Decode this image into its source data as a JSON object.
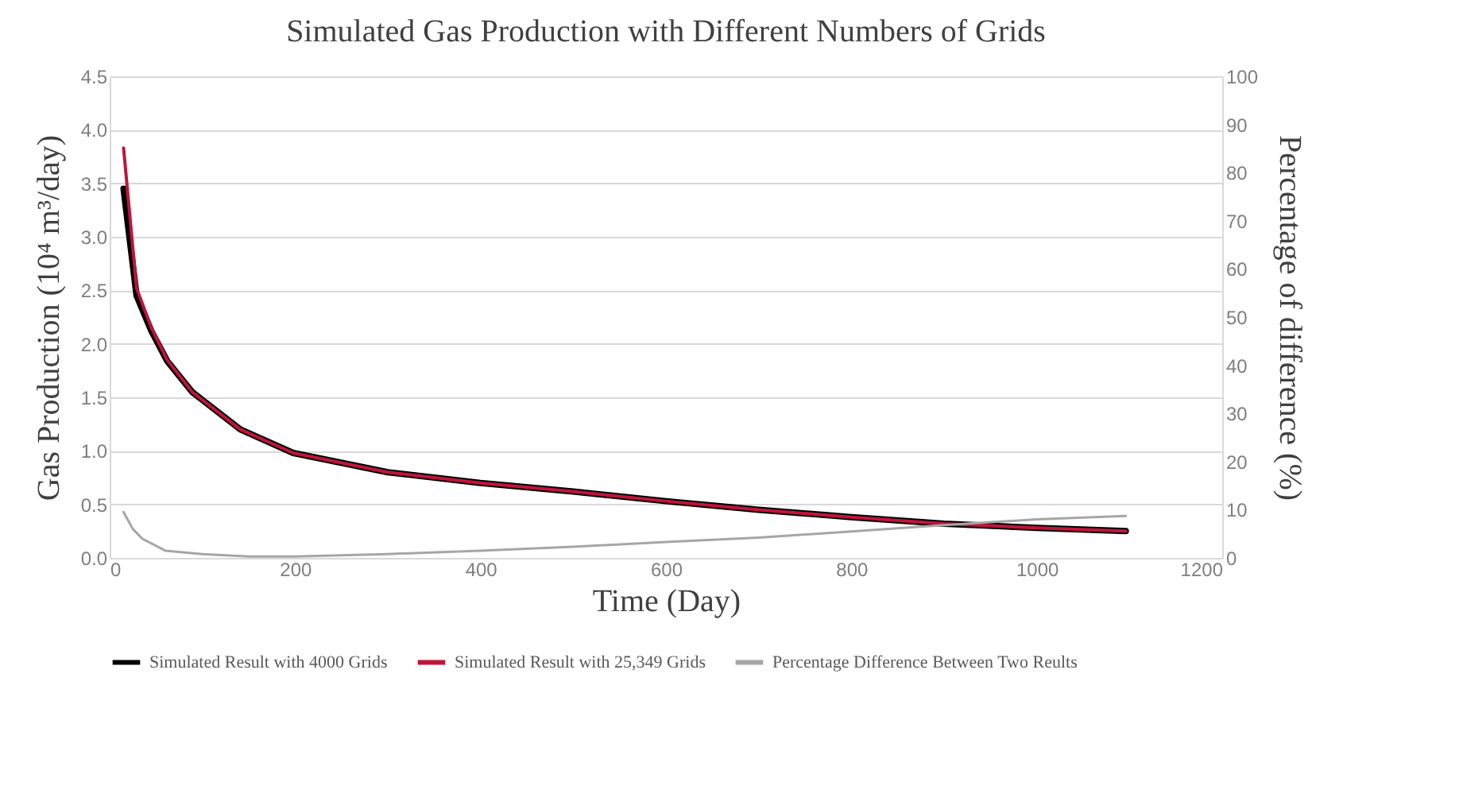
{
  "chart_data": {
    "type": "line",
    "title": "Simulated Gas Production with Different Numbers of Grids",
    "xlabel": "Time (Day)",
    "ylabel": "Gas Production (10⁴ m³/day)",
    "y2label": "Percentage of difference (%)",
    "x": [
      15,
      29,
      45,
      62,
      89,
      141,
      198,
      300,
      400,
      500,
      600,
      700,
      800,
      900,
      1000,
      1096
    ],
    "series": [
      {
        "name": "Simulated Result with 4000 Grids",
        "color": "#000000",
        "values": [
          3.45,
          2.45,
          2.12,
          1.84,
          1.55,
          1.2,
          0.98,
          0.8,
          0.7,
          0.62,
          0.53,
          0.45,
          0.38,
          0.32,
          0.28,
          0.25
        ]
      },
      {
        "name": "Simulated Result with 25,349 Grids",
        "color": "#c0143c",
        "values": [
          3.83,
          2.52,
          2.15,
          1.85,
          1.55,
          1.2,
          0.98,
          0.8,
          0.7,
          0.62,
          0.53,
          0.45,
          0.38,
          0.32,
          0.28,
          0.25
        ]
      },
      {
        "name": "Percentage Difference Between Two Reults",
        "color": "#a6a6a6",
        "axis": "y2",
        "x": [
          15,
          25,
          35,
          60,
          100,
          150,
          200,
          300,
          400,
          500,
          600,
          700,
          800,
          900,
          1000,
          1096
        ],
        "values": [
          9.5,
          6,
          4,
          1.5,
          0.8,
          0.3,
          0.3,
          0.8,
          1.5,
          2.3,
          3.3,
          4.2,
          5.5,
          6.8,
          8,
          8.7
        ]
      }
    ],
    "xlim": [
      0,
      1200
    ],
    "xticks": [
      0,
      200,
      400,
      600,
      800,
      1000,
      1200
    ],
    "ylim": [
      0,
      4.5
    ],
    "yticks": [
      {
        "value": 0,
        "label": "0.0"
      },
      0.5,
      {
        "value": 1,
        "label": "1.0"
      },
      1.5,
      {
        "value": 2,
        "label": "2.0"
      },
      2.5,
      {
        "value": 3,
        "label": "3.0"
      },
      3.5,
      {
        "value": 4,
        "label": "4.0"
      },
      4.5
    ],
    "y2lim": [
      0,
      100
    ],
    "y2ticks": [
      0,
      10,
      20,
      30,
      40,
      50,
      60,
      70,
      80,
      90,
      100
    ],
    "grid": "y",
    "legend": "bottom",
    "marker": "none",
    "line_style": "solid"
  }
}
